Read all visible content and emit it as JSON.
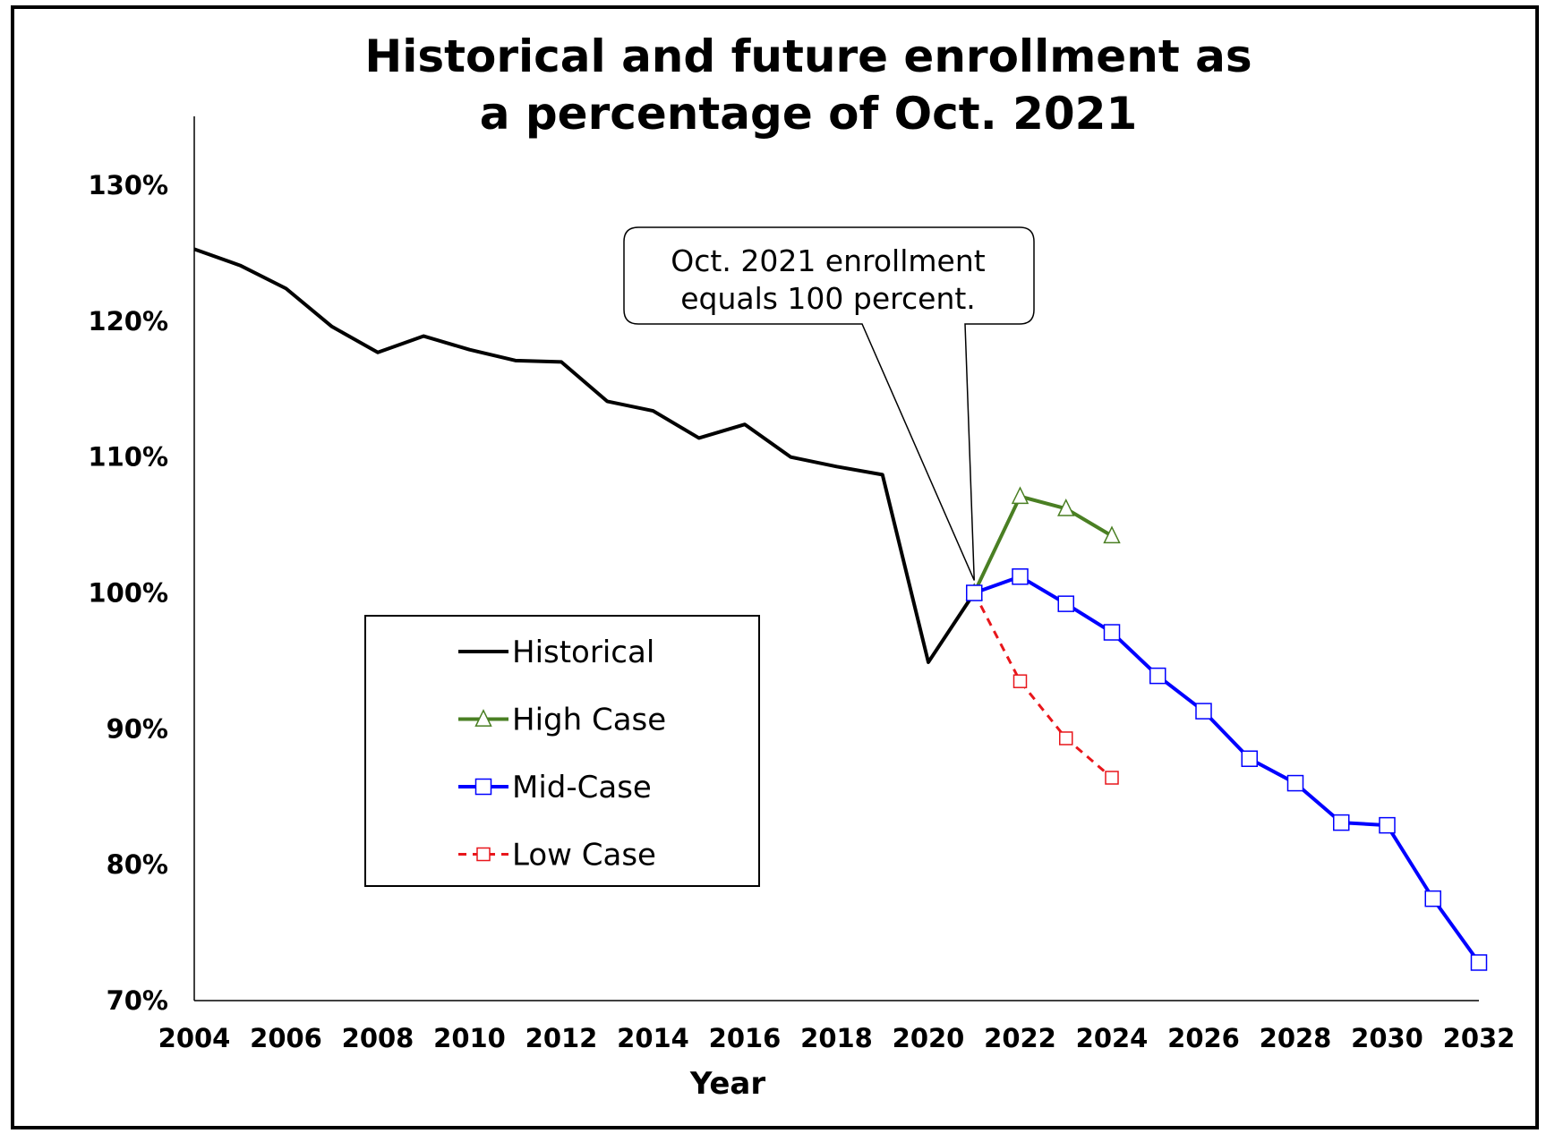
{
  "chart_data": {
    "type": "line",
    "title": [
      "Historical and future enrollment as",
      "a percentage of Oct. 2021"
    ],
    "xlabel": "Year",
    "ylabel": "",
    "xlim": [
      2004,
      2032
    ],
    "ylim": [
      70,
      135
    ],
    "x_ticks": [
      2004,
      2006,
      2008,
      2010,
      2012,
      2014,
      2016,
      2018,
      2020,
      2022,
      2024,
      2026,
      2028,
      2030,
      2032
    ],
    "y_ticks": [
      70,
      80,
      90,
      100,
      110,
      120,
      130
    ],
    "y_tick_format": "percent",
    "grid": false,
    "legend_position": "lower-left",
    "annotation": {
      "lines": [
        "Oct. 2021 enrollment",
        "equals 100 percent."
      ],
      "points_to": {
        "x": 2021,
        "y": 100
      }
    },
    "series": [
      {
        "name": "Historical",
        "color": "#000000",
        "style": "solid",
        "marker": "none",
        "x": [
          2004,
          2005,
          2006,
          2007,
          2008,
          2009,
          2010,
          2011,
          2012,
          2013,
          2014,
          2015,
          2016,
          2017,
          2018,
          2019,
          2020,
          2021
        ],
        "values": [
          125.3,
          124.1,
          122.4,
          119.6,
          117.7,
          118.9,
          117.9,
          117.1,
          117.0,
          114.1,
          113.4,
          111.4,
          112.4,
          110.0,
          109.3,
          108.7,
          94.9,
          100.0
        ]
      },
      {
        "name": "High Case",
        "color": "#4a7f23",
        "style": "solid",
        "marker": "triangle",
        "x": [
          2021,
          2022,
          2023,
          2024
        ],
        "values": [
          100.0,
          107.1,
          106.2,
          104.2
        ]
      },
      {
        "name": "Mid-Case",
        "color": "#0000ff",
        "style": "solid",
        "marker": "square",
        "x": [
          2021,
          2022,
          2023,
          2024,
          2025,
          2026,
          2027,
          2028,
          2029,
          2030,
          2031,
          2032
        ],
        "values": [
          100.0,
          101.2,
          99.2,
          97.1,
          93.9,
          91.3,
          87.8,
          86.0,
          83.1,
          82.9,
          77.5,
          72.8
        ]
      },
      {
        "name": "Low Case",
        "color": "#e8161b",
        "style": "dashed",
        "marker": "square",
        "x": [
          2021,
          2022,
          2023,
          2024
        ],
        "values": [
          100.0,
          93.5,
          89.3,
          86.4
        ]
      }
    ]
  }
}
